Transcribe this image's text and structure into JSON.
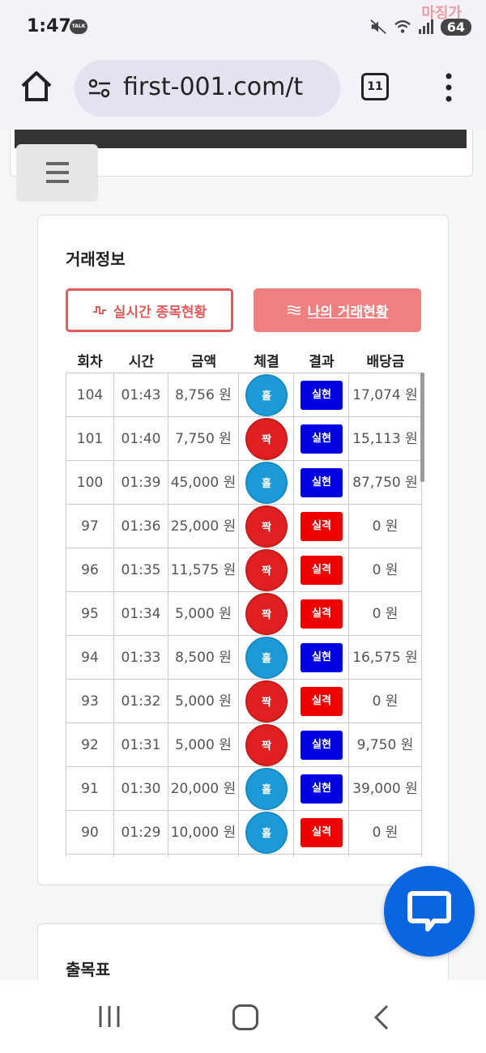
{
  "status": {
    "time": "1:47",
    "talk_badge": "TALK",
    "battery": "64",
    "watermark": "마징가"
  },
  "browser": {
    "url": "first-001.com/t",
    "tab_count": "11"
  },
  "trade": {
    "title": "거래정보",
    "btn_live": "실시간 종목현황",
    "btn_mine": "나의 거래현황",
    "columns": [
      "회차",
      "시간",
      "금액",
      "체결",
      "결과",
      "배당금"
    ],
    "rows": [
      {
        "round": "104",
        "time": "01:43",
        "amount": "8,756 원",
        "pick": "홀",
        "pick_type": "odd",
        "result": "실현",
        "result_type": "hit",
        "payout": "17,074 원"
      },
      {
        "round": "101",
        "time": "01:40",
        "amount": "7,750 원",
        "pick": "짝",
        "pick_type": "even",
        "result": "실현",
        "result_type": "hit",
        "payout": "15,113 원"
      },
      {
        "round": "100",
        "time": "01:39",
        "amount": "45,000 원",
        "pick": "홀",
        "pick_type": "odd",
        "result": "실현",
        "result_type": "hit",
        "payout": "87,750 원"
      },
      {
        "round": "97",
        "time": "01:36",
        "amount": "25,000 원",
        "pick": "짝",
        "pick_type": "even",
        "result": "실격",
        "result_type": "miss",
        "payout": "0 원"
      },
      {
        "round": "96",
        "time": "01:35",
        "amount": "11,575 원",
        "pick": "짝",
        "pick_type": "even",
        "result": "실격",
        "result_type": "miss",
        "payout": "0 원"
      },
      {
        "round": "95",
        "time": "01:34",
        "amount": "5,000 원",
        "pick": "짝",
        "pick_type": "even",
        "result": "실격",
        "result_type": "miss",
        "payout": "0 원"
      },
      {
        "round": "94",
        "time": "01:33",
        "amount": "8,500 원",
        "pick": "홀",
        "pick_type": "odd",
        "result": "실현",
        "result_type": "hit",
        "payout": "16,575 원"
      },
      {
        "round": "93",
        "time": "01:32",
        "amount": "5,000 원",
        "pick": "짝",
        "pick_type": "even",
        "result": "실격",
        "result_type": "miss",
        "payout": "0 원"
      },
      {
        "round": "92",
        "time": "01:31",
        "amount": "5,000 원",
        "pick": "짝",
        "pick_type": "even",
        "result": "실현",
        "result_type": "hit",
        "payout": "9,750 원"
      },
      {
        "round": "91",
        "time": "01:30",
        "amount": "20,000 원",
        "pick": "홀",
        "pick_type": "odd",
        "result": "실현",
        "result_type": "hit",
        "payout": "39,000 원"
      },
      {
        "round": "90",
        "time": "01:29",
        "amount": "10,000 원",
        "pick": "홀",
        "pick_type": "odd",
        "result": "실격",
        "result_type": "miss",
        "payout": "0 원"
      }
    ]
  },
  "section2": {
    "title": "출목표"
  },
  "colors": {
    "odd": "#1b9ad7",
    "even": "#e02020",
    "hit": "#0000e0",
    "miss": "#ee0000",
    "accent": "#e25b5b",
    "chat": "#0a66e0"
  }
}
